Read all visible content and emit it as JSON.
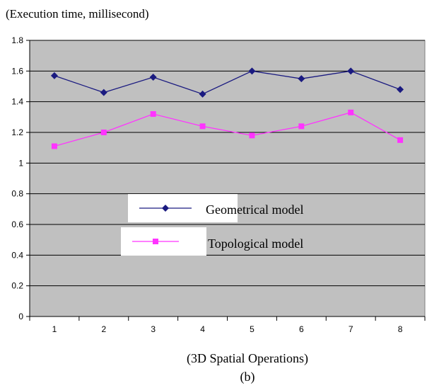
{
  "chart_data": {
    "type": "line",
    "ylabel": "(Execution time, millisecond)",
    "xlabel": "(3D Spatial Operations)",
    "caption": "(b)",
    "categories": [
      "1",
      "2",
      "3",
      "4",
      "5",
      "6",
      "7",
      "8"
    ],
    "ylim": [
      0,
      1.8
    ],
    "yticks": [
      "0",
      "0.2",
      "0.4",
      "0.6",
      "0.8",
      "1",
      "1.2",
      "1.4",
      "1.6",
      "1.8"
    ],
    "grid": true,
    "legend_position": "center",
    "series": [
      {
        "name": "Geometrical model",
        "marker": "diamond",
        "color": "#1a1a80",
        "values": [
          1.57,
          1.46,
          1.56,
          1.45,
          1.6,
          1.55,
          1.6,
          1.48
        ]
      },
      {
        "name": "Topological model",
        "marker": "square",
        "color": "#ff33ff",
        "values": [
          1.11,
          1.2,
          1.32,
          1.24,
          1.18,
          1.24,
          1.33,
          1.15
        ]
      }
    ],
    "colors": {
      "plot_background": "#c0c0c0",
      "gridline": "#000000"
    }
  }
}
